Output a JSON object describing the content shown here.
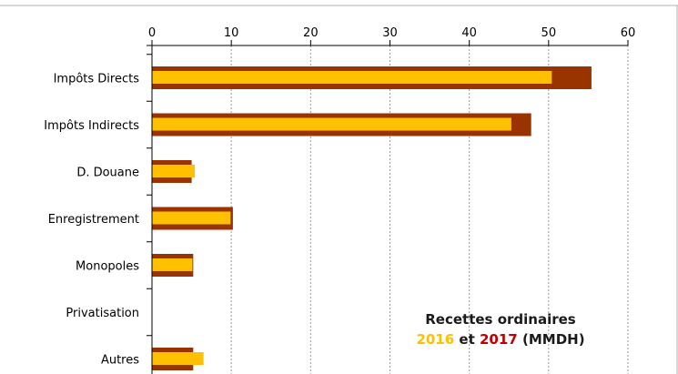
{
  "chart_data": {
    "type": "bar",
    "orientation": "horizontal",
    "categories": [
      "Impôts Directs",
      "Impôts Indirects",
      "D. Douane",
      "Enregistrement",
      "Monopoles",
      "Privatisation",
      "Autres"
    ],
    "series": [
      {
        "name": "2017",
        "color": "#993300",
        "values": [
          55.4,
          47.8,
          5.0,
          10.2,
          5.2,
          0,
          5.2
        ]
      },
      {
        "name": "2016",
        "color": "#ffc000",
        "values": [
          50.4,
          45.3,
          5.4,
          9.9,
          5.1,
          0,
          6.5
        ]
      }
    ],
    "xlim": [
      0,
      60
    ],
    "xticks": [
      "0",
      "10",
      "20",
      "30",
      "40",
      "50",
      "60"
    ],
    "grid": "vertical-dashed",
    "legend": {
      "line1": "Recettes ordinaires",
      "year_a": "2016",
      "connector": "et",
      "year_b": "2017",
      "unit": "(MMDH)",
      "year_a_color": "#ffc000",
      "year_b_color": "#c00000"
    }
  }
}
